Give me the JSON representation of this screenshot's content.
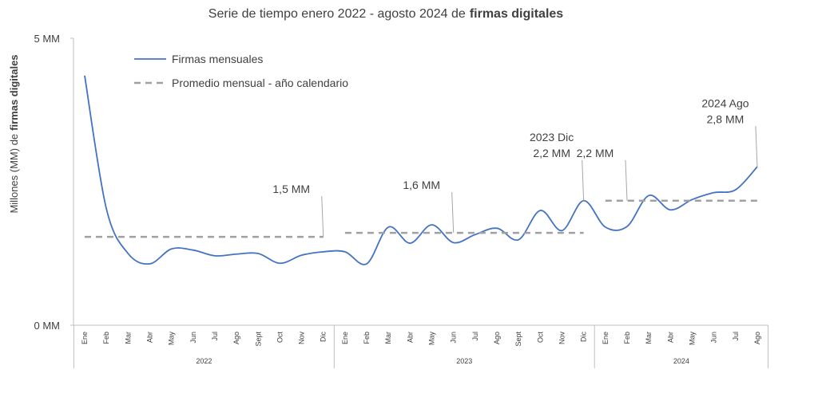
{
  "chart_data": {
    "type": "line",
    "title": [
      "Serie de tiempo enero 2022 - agosto 2024 de",
      "firmas digitales"
    ],
    "y_label": [
      "Millones (MM) de",
      "firmas digitales"
    ],
    "categories": [
      "Ene",
      "Feb",
      "Mar",
      "Abr",
      "May",
      "Jun",
      "Jul",
      "Ago",
      "Sept",
      "Oct",
      "Nov",
      "Dic",
      "Ene",
      "Feb",
      "Mar",
      "Abr",
      "May",
      "Jun",
      "Jul",
      "Ago",
      "Sept",
      "Oct",
      "Nov",
      "Dic",
      "Ene",
      "Feb",
      "Mar",
      "Abr",
      "May",
      "Jun",
      "Jul",
      "Ago"
    ],
    "groups": [
      {
        "label": "2022",
        "count": 12
      },
      {
        "label": "2023",
        "count": 12
      },
      {
        "label": "2024",
        "count": 8
      }
    ],
    "series": [
      {
        "name": "Firmas mensuales",
        "color": "#4472c4",
        "style": "solid",
        "values": [
          4.35,
          2.03,
          1.25,
          1.07,
          1.33,
          1.31,
          1.21,
          1.24,
          1.25,
          1.08,
          1.22,
          1.28,
          1.28,
          1.07,
          1.71,
          1.43,
          1.75,
          1.44,
          1.58,
          1.69,
          1.49,
          2.0,
          1.65,
          2.17,
          1.71,
          1.72,
          2.26,
          2.01,
          2.19,
          2.31,
          2.36,
          2.76
        ]
      },
      {
        "name": "Promedio mensual - año calendario",
        "color": "#a0a0a0",
        "style": "dashed",
        "values": [
          1.54,
          1.54,
          1.54,
          1.54,
          1.54,
          1.54,
          1.54,
          1.54,
          1.54,
          1.54,
          1.54,
          1.54,
          1.61,
          1.61,
          1.61,
          1.61,
          1.61,
          1.61,
          1.61,
          1.61,
          1.61,
          1.61,
          1.61,
          1.61,
          2.17,
          2.17,
          2.17,
          2.17,
          2.17,
          2.17,
          2.17,
          2.17
        ]
      }
    ],
    "annotations": [
      {
        "lines": [
          "1,5 MM"
        ],
        "series": 1,
        "index": 11
      },
      {
        "lines": [
          "1,6 MM"
        ],
        "series": 1,
        "index": 17
      },
      {
        "lines": [
          "2023 Dic",
          "2,2 MM"
        ],
        "series": 0,
        "index": 23
      },
      {
        "lines": [
          "2,2 MM"
        ],
        "series": 1,
        "index": 25
      },
      {
        "lines": [
          "2024 Ago",
          "2,8 MM"
        ],
        "series": 0,
        "index": 31
      }
    ],
    "ylim": [
      0,
      5
    ],
    "yticks": [
      {
        "value": 0,
        "label": "0 MM"
      },
      {
        "value": 5,
        "label": "5 MM"
      }
    ],
    "grid": false,
    "legend": "top-left"
  }
}
